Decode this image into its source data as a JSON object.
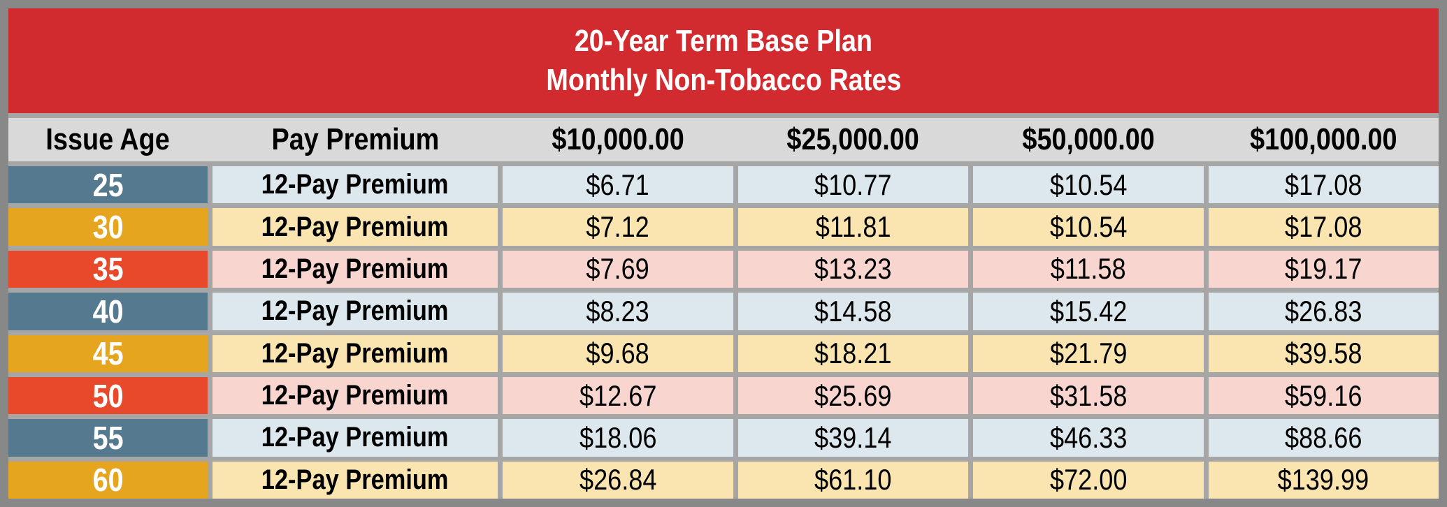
{
  "banner": {
    "line1": "20-Year Term Base Plan",
    "line2": "Monthly Non-Tobacco Rates",
    "bg": "#D22B2F",
    "text_color": "#FFFFFF"
  },
  "table": {
    "columns": [
      "Issue Age",
      "Pay Premium",
      "$10,000.00",
      "$25,000.00",
      "$50,000.00",
      "$100,000.00"
    ],
    "rows": [
      {
        "age": "25",
        "pay_label": "12-Pay Premium",
        "theme": "blue",
        "values": [
          "$6.71",
          "$10.77",
          "$10.54",
          "$17.08"
        ]
      },
      {
        "age": "30",
        "pay_label": "12-Pay Premium",
        "theme": "gold",
        "values": [
          "$7.12",
          "$11.81",
          "$10.54",
          "$17.08"
        ]
      },
      {
        "age": "35",
        "pay_label": "12-Pay Premium",
        "theme": "red",
        "values": [
          "$7.69",
          "$13.23",
          "$11.58",
          "$19.17"
        ]
      },
      {
        "age": "40",
        "pay_label": "12-Pay Premium",
        "theme": "blue",
        "values": [
          "$8.23",
          "$14.58",
          "$15.42",
          "$26.83"
        ]
      },
      {
        "age": "45",
        "pay_label": "12-Pay Premium",
        "theme": "gold",
        "values": [
          "$9.68",
          "$18.21",
          "$21.79",
          "$39.58"
        ]
      },
      {
        "age": "50",
        "pay_label": "12-Pay Premium",
        "theme": "red",
        "values": [
          "$12.67",
          "$25.69",
          "$31.58",
          "$59.16"
        ]
      },
      {
        "age": "55",
        "pay_label": "12-Pay Premium",
        "theme": "blue",
        "values": [
          "$18.06",
          "$39.14",
          "$46.33",
          "$88.66"
        ]
      },
      {
        "age": "60",
        "pay_label": "12-Pay Premium",
        "theme": "gold",
        "values": [
          "$26.84",
          "$61.10",
          "$72.00",
          "$139.99"
        ]
      }
    ]
  },
  "colors": {
    "frame": "#888888",
    "divider": "#A6A6A6",
    "header_bg": "#D9D9D9",
    "themes": {
      "blue": {
        "solid": "#55798F",
        "tint": "#DCE7EE"
      },
      "gold": {
        "solid": "#E6A51F",
        "tint": "#FAE4AF"
      },
      "red": {
        "solid": "#E8492A",
        "tint": "#F8D6CF"
      }
    }
  }
}
